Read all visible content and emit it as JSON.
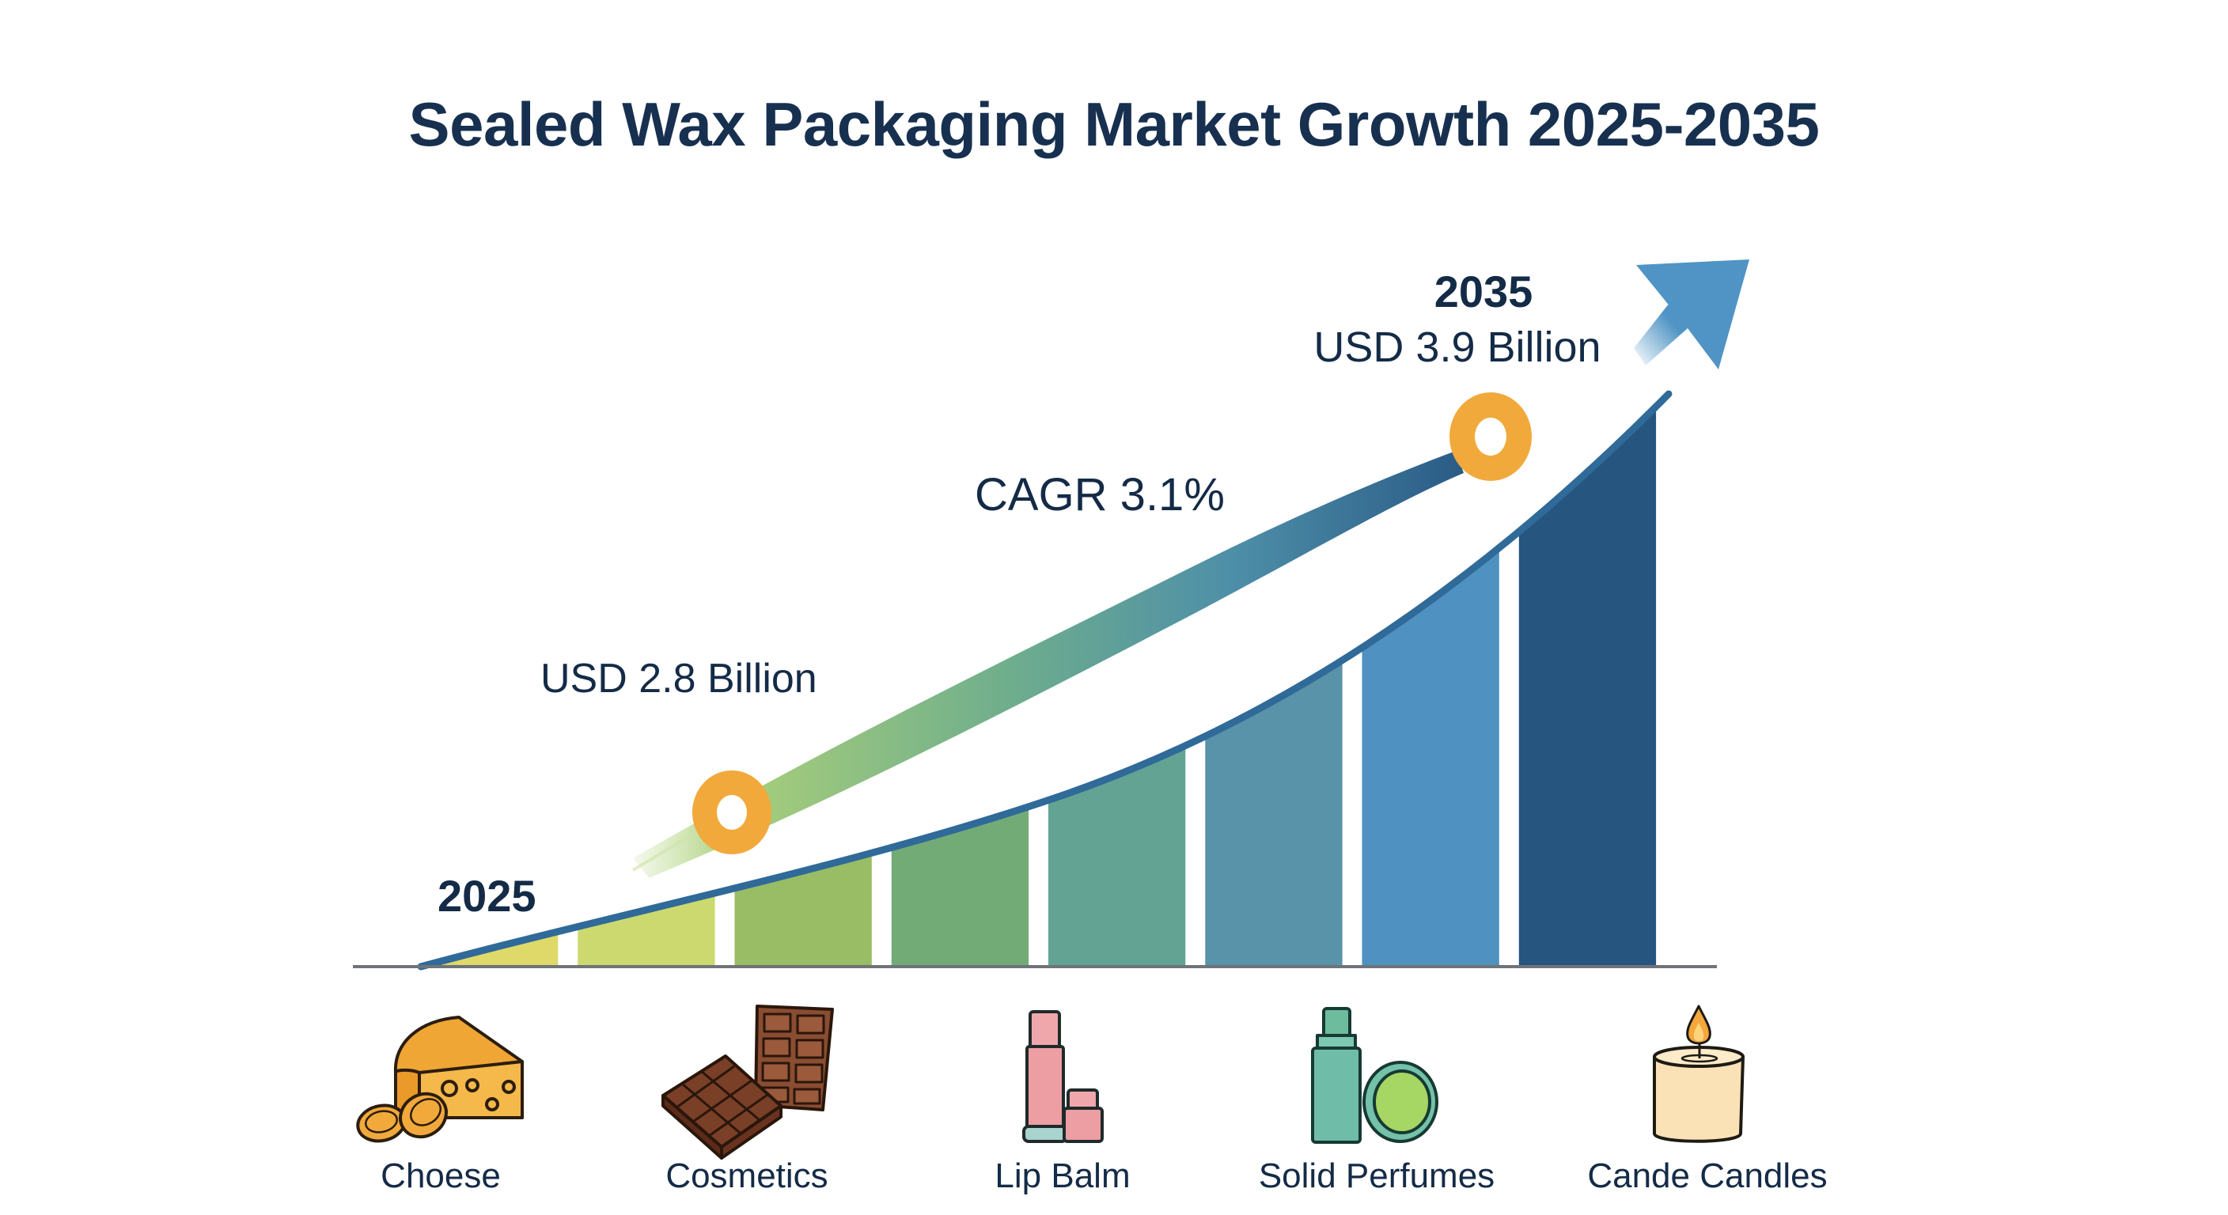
{
  "title": "Sealed Wax Packaging Market Growth 2025-2035",
  "annotations": {
    "start_year": "2025",
    "start_value": "USD 2.8 Billion",
    "cagr": "CAGR 3.1%",
    "end_year": "2035",
    "end_value": "USD 3.9 Billion"
  },
  "categories": [
    {
      "label": "Choese",
      "icon": "cheese-icon"
    },
    {
      "label": "Cosmetics",
      "icon": "chocolate-bar-icon"
    },
    {
      "label": "Lip Balm",
      "icon": "lip-balm-icon"
    },
    {
      "label": "Solid Perfumes",
      "icon": "solid-perfume-icon"
    },
    {
      "label": "Cande Candles",
      "icon": "candle-icon"
    }
  ],
  "colors": {
    "text": "#142b47",
    "marker": "#f2a93b",
    "arrow": "#4f94c4",
    "curve": "#2f6a99",
    "baseline": "#6e7479",
    "bars": [
      "#dfd96a",
      "#cbd96e",
      "#98bd64",
      "#73ab77",
      "#62a393",
      "#5893a9",
      "#4f91c0",
      "#26557f"
    ]
  },
  "chart_data": {
    "type": "bar",
    "title": "Sealed Wax Packaging Market Growth 2025-2035",
    "xlabel": "",
    "ylabel": "",
    "x_range": [
      2025,
      2035
    ],
    "start": {
      "year": 2025,
      "value": 2.8,
      "unit": "USD Billion"
    },
    "end": {
      "year": 2035,
      "value": 3.9,
      "unit": "USD Billion"
    },
    "cagr_percent": 3.1,
    "bar_count": 8,
    "grid": false,
    "legend": "none"
  }
}
